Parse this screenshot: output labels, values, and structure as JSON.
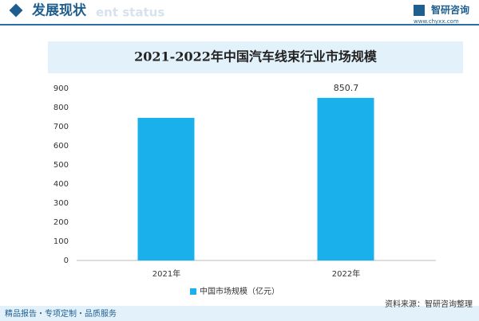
{
  "header": {
    "title": "发展现状",
    "subtitle": "ent status",
    "brand": "智研咨询",
    "website": "www.chyxx.com"
  },
  "chart_data": {
    "type": "bar",
    "title": "2021-2022年中国汽车线束行业市场规模",
    "categories": [
      "2021年",
      "2022年"
    ],
    "series": [
      {
        "name": "中国市场规模（亿元）",
        "color": "#1ab0ec",
        "values": [
          746,
          850.7
        ],
        "value_labels": [
          null,
          "850.7"
        ]
      }
    ],
    "ylim": [
      0,
      900
    ],
    "yticks": [
      0,
      100,
      200,
      300,
      400,
      500,
      600,
      700,
      800,
      900
    ]
  },
  "footer": {
    "left": "精品报告・专项定制・品质服务",
    "right": "资料来源：智研咨询整理"
  }
}
